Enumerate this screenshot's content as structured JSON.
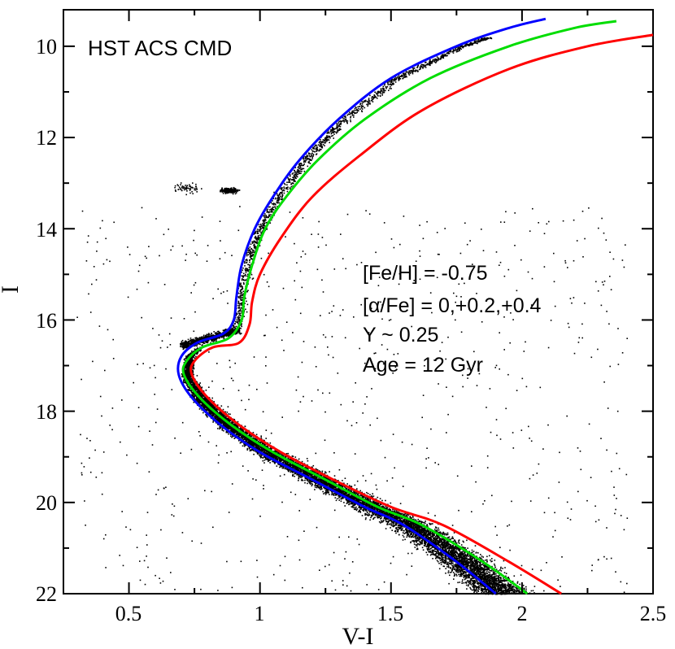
{
  "chart_data": {
    "type": "line",
    "title": "HST ACS CMD",
    "xlabel": "V-I",
    "ylabel": "I",
    "xlim": [
      0.25,
      2.5
    ],
    "ylim": [
      22,
      9.2
    ],
    "y_inverted": true,
    "grid": false,
    "xticks": [
      "0.5",
      "1",
      "1.5",
      "2",
      "2.5"
    ],
    "yticks": [
      "10",
      "12",
      "14",
      "16",
      "18",
      "20",
      "22"
    ],
    "annotations": [
      "[Fe/H] = -0.75",
      "[α/Fe] = 0,+0.2,+0.4",
      "Y ~ 0.25",
      "Age = 12 Gyr"
    ],
    "series": [
      {
        "color": "#0000ff",
        "points": [
          [
            1.9,
            22.0
          ],
          [
            1.75,
            21.3
          ],
          [
            1.55,
            20.5
          ],
          [
            1.4,
            20.1
          ],
          [
            1.2,
            19.5
          ],
          [
            1.0,
            18.9
          ],
          [
            0.85,
            18.3
          ],
          [
            0.74,
            17.7
          ],
          [
            0.69,
            17.2
          ],
          [
            0.7,
            16.8
          ],
          [
            0.76,
            16.5
          ],
          [
            0.86,
            16.3
          ],
          [
            0.9,
            16.0
          ],
          [
            0.91,
            15.5
          ],
          [
            0.93,
            14.8
          ],
          [
            0.98,
            14.0
          ],
          [
            1.05,
            13.3
          ],
          [
            1.15,
            12.5
          ],
          [
            1.3,
            11.6
          ],
          [
            1.5,
            10.7
          ],
          [
            1.75,
            10.0
          ],
          [
            1.95,
            9.6
          ],
          [
            2.09,
            9.4
          ]
        ]
      },
      {
        "color": "#00dd00",
        "points": [
          [
            2.02,
            22.0
          ],
          [
            1.85,
            21.3
          ],
          [
            1.62,
            20.5
          ],
          [
            1.45,
            20.1
          ],
          [
            1.25,
            19.5
          ],
          [
            1.05,
            18.9
          ],
          [
            0.89,
            18.3
          ],
          [
            0.77,
            17.7
          ],
          [
            0.71,
            17.2
          ],
          [
            0.72,
            16.9
          ],
          [
            0.78,
            16.6
          ],
          [
            0.88,
            16.4
          ],
          [
            0.93,
            16.0
          ],
          [
            0.94,
            15.5
          ],
          [
            0.97,
            14.8
          ],
          [
            1.02,
            14.0
          ],
          [
            1.1,
            13.3
          ],
          [
            1.22,
            12.5
          ],
          [
            1.4,
            11.6
          ],
          [
            1.65,
            10.7
          ],
          [
            1.95,
            10.0
          ],
          [
            2.2,
            9.6
          ],
          [
            2.36,
            9.45
          ]
        ]
      },
      {
        "color": "#ff0000",
        "points": [
          [
            2.15,
            22.0
          ],
          [
            1.95,
            21.3
          ],
          [
            1.7,
            20.5
          ],
          [
            1.5,
            20.1
          ],
          [
            1.28,
            19.5
          ],
          [
            1.08,
            18.9
          ],
          [
            0.92,
            18.3
          ],
          [
            0.8,
            17.7
          ],
          [
            0.74,
            17.2
          ],
          [
            0.75,
            16.9
          ],
          [
            0.82,
            16.6
          ],
          [
            0.92,
            16.5
          ],
          [
            0.96,
            16.1
          ],
          [
            0.97,
            15.6
          ],
          [
            1.0,
            15.0
          ],
          [
            1.08,
            14.2
          ],
          [
            1.2,
            13.3
          ],
          [
            1.38,
            12.4
          ],
          [
            1.62,
            11.4
          ],
          [
            1.95,
            10.5
          ],
          [
            2.25,
            10.0
          ],
          [
            2.5,
            9.75
          ]
        ]
      }
    ]
  }
}
